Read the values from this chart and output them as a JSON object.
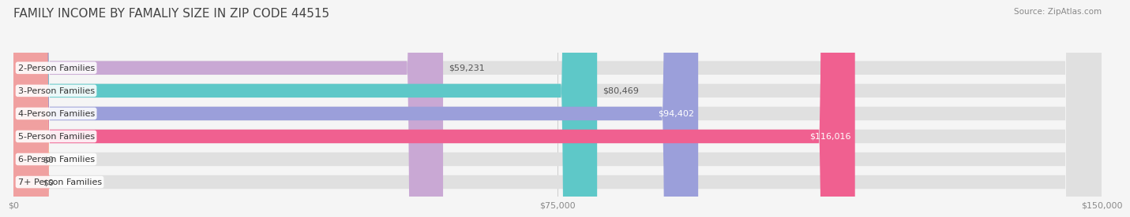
{
  "title": "FAMILY INCOME BY FAMALIY SIZE IN ZIP CODE 44515",
  "source": "Source: ZipAtlas.com",
  "categories": [
    "2-Person Families",
    "3-Person Families",
    "4-Person Families",
    "5-Person Families",
    "6-Person Families",
    "7+ Person Families"
  ],
  "values": [
    59231,
    80469,
    94402,
    116016,
    0,
    0
  ],
  "bar_colors": [
    "#c9a8d4",
    "#5ec8c8",
    "#9b9fda",
    "#f06090",
    "#f5c89a",
    "#f0a0a0"
  ],
  "label_colors": [
    "#333333",
    "#333333",
    "#ffffff",
    "#ffffff",
    "#333333",
    "#333333"
  ],
  "value_labels": [
    "$59,231",
    "$80,469",
    "$94,402",
    "$116,016",
    "$0",
    "$0"
  ],
  "xmax": 150000,
  "xticks": [
    0,
    75000,
    150000
  ],
  "xticklabels": [
    "$0",
    "$75,000",
    "$150,000"
  ],
  "bg_color": "#f5f5f5",
  "bar_bg_color": "#e0e0e0",
  "bar_height": 0.6,
  "title_fontsize": 11,
  "label_fontsize": 8.0,
  "value_fontsize": 8.0,
  "axis_fontsize": 8.0
}
